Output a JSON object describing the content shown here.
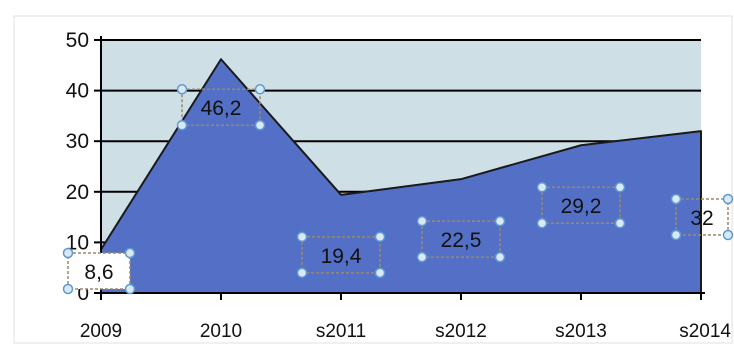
{
  "chart_data": {
    "type": "area",
    "categories": [
      "2009",
      "2010",
      "s2011",
      "s2012",
      "s2013",
      "s2014"
    ],
    "series": [
      {
        "values": [
          8.6,
          46.2,
          19.4,
          22.5,
          29.2,
          32
        ]
      }
    ],
    "data_labels": [
      "8,6",
      "46,2",
      "19,4",
      "22,5",
      "29,2",
      "32"
    ],
    "y_ticks": [
      "0",
      "10",
      "20",
      "30",
      "40",
      "50"
    ],
    "ylim": [
      0,
      50
    ],
    "grid": "horizontal",
    "colors": {
      "area_fill": "#5470c6",
      "plot_background": "#cfdfe6",
      "gridline": "#000000",
      "selection_handle": "#5b9bd5"
    }
  }
}
